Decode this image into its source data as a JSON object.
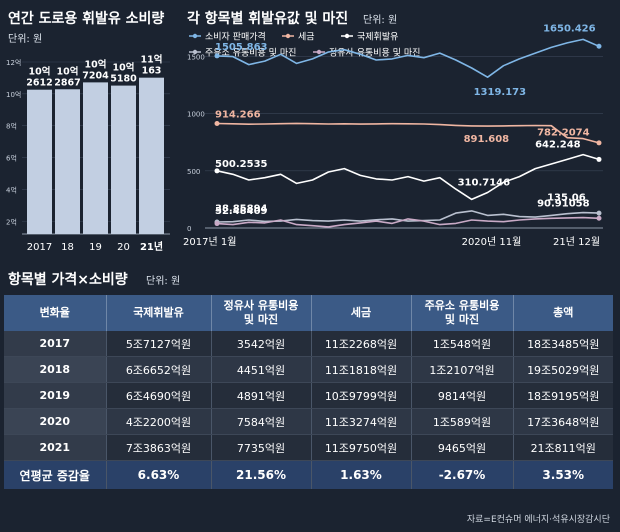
{
  "left_chart": {
    "title": "연간 도로용 휘발유 소비량",
    "unit": "단위: 원",
    "chart_data": {
      "type": "bar",
      "categories": [
        "2017",
        "18",
        "19",
        "20",
        "21년"
      ],
      "values": [
        10.2612,
        10.2867,
        10.7204,
        10.518,
        11.0163
      ],
      "bar_labels_top": [
        "10억",
        "10억",
        "10억",
        "10억",
        "11억"
      ],
      "bar_labels_bottom": [
        "2612",
        "2867",
        "7204",
        "5180",
        "163"
      ],
      "y_ticks": [
        2,
        4,
        6,
        8,
        10,
        12
      ],
      "y_tick_labels": [
        "2억",
        "4억",
        "6억",
        "8억",
        "10억",
        "12억"
      ],
      "ylim": [
        1.2,
        12
      ]
    }
  },
  "right_chart": {
    "title": "각 항목별 휘발유값 및 마진",
    "unit": "단위: 원",
    "chart_data": {
      "type": "line",
      "legend": [
        "소비자 판매가격",
        "세금",
        "국제휘발유",
        "주유소 유통비용 및 마진",
        "정유사 유통비용 및 마진"
      ],
      "x_labels": [
        "2017년 1월",
        "2020년 11월",
        "21년 12월"
      ],
      "y_ticks": [
        0,
        500,
        1000,
        1500
      ],
      "y_tick_labels": [
        "0",
        "500",
        "1000",
        "1500"
      ],
      "ylim": [
        0,
        1750
      ],
      "series": [
        {
          "name": "소비자 판매가격",
          "color": "#7fb6e6",
          "values": [
            1505.863,
            1500,
            1430,
            1460,
            1520,
            1440,
            1480,
            1540,
            1560,
            1520,
            1470,
            1480,
            1510,
            1490,
            1530,
            1470,
            1400,
            1319.173,
            1420,
            1480,
            1530,
            1580,
            1620,
            1650.426,
            1590
          ]
        },
        {
          "name": "세금",
          "color": "#f0b6a2",
          "values": [
            914.266,
            912,
            908,
            910,
            913,
            915,
            913,
            910,
            912,
            909,
            911,
            913,
            912,
            910,
            905,
            898,
            893,
            891.608,
            893,
            895,
            897,
            895,
            790,
            782.2074,
            745
          ]
        },
        {
          "name": "국제휘발유",
          "color": "#ffffff",
          "values": [
            500.2535,
            470,
            420,
            440,
            470,
            390,
            420,
            490,
            520,
            460,
            430,
            420,
            450,
            410,
            440,
            340,
            250,
            310.7146,
            400,
            450,
            520,
            560,
            600,
            642.248,
            600
          ]
        },
        {
          "name": "주유소 유통비용 및 마진",
          "color": "#b9c0cf",
          "values": [
            52.48409,
            55,
            70,
            58,
            60,
            75,
            65,
            60,
            70,
            60,
            72,
            80,
            60,
            65,
            70,
            130,
            150,
            110,
            120,
            100,
            95,
            110,
            125,
            135.06,
            130
          ]
        },
        {
          "name": "정유사 유통비용 및 마진",
          "color": "#c9aac6",
          "values": [
            38.85894,
            30,
            50,
            45,
            70,
            30,
            20,
            10,
            30,
            45,
            60,
            40,
            80,
            60,
            30,
            40,
            70,
            60,
            55,
            70,
            80,
            85,
            88,
            90.91058,
            85
          ]
        }
      ],
      "annotations": [
        "1505.863",
        "1319.173",
        "1650.426",
        "914.266",
        "891.608",
        "782.2074",
        "500.2535",
        "310.7146",
        "642.248",
        "52.48409",
        "38.85894",
        "135.06",
        "90.91058"
      ]
    }
  },
  "table": {
    "title": "항목별 가격×소비량",
    "unit": "단위: 원",
    "headers": [
      "변화율",
      "국제휘발유",
      "정유사 유통비용\n및 마진",
      "세금",
      "주유소 유통비용\n및 마진",
      "총액"
    ],
    "rows": [
      [
        "2017",
        "5조7127억원",
        "3542억원",
        "11조2268억원",
        "1조548억원",
        "18조3485억원"
      ],
      [
        "2018",
        "6조6652억원",
        "4451억원",
        "11조1818억원",
        "1조2107억원",
        "19조5029억원"
      ],
      [
        "2019",
        "6조4690억원",
        "4891억원",
        "10조9799억원",
        "9814억원",
        "18조9195억원"
      ],
      [
        "2020",
        "4조2200억원",
        "7584억원",
        "11조3274억원",
        "1조589억원",
        "17조3648억원"
      ],
      [
        "2021",
        "7조3863억원",
        "7735억원",
        "11조9750억원",
        "9465억원",
        "21조811억원"
      ]
    ],
    "summary": [
      "연평균 증감율",
      "6.63%",
      "21.56%",
      "1.63%",
      "-2.67%",
      "3.53%"
    ]
  },
  "source": "자료=E컨슈머 에너지·석유시장감시단"
}
